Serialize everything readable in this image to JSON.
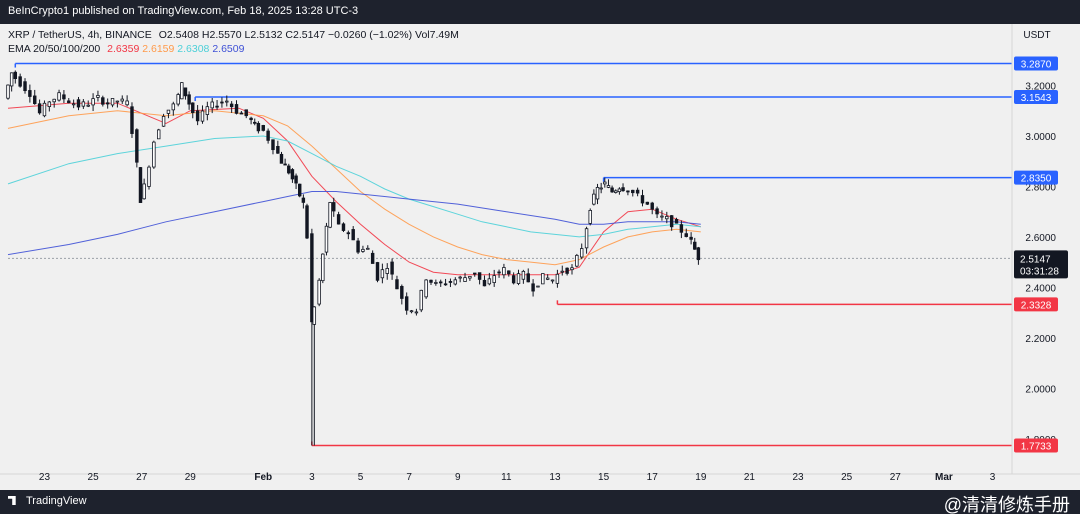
{
  "header": {
    "publisher_text": "BeInCrypto1 published on TradingView.com, Feb 18, 2025 13:28 UTC-3"
  },
  "symbol_line": {
    "symbol": "XRP / TetherUS, 4h, BINANCE",
    "open": "O2.5408",
    "high": "H2.5570",
    "low": "L2.5132",
    "close": "C2.5147",
    "change": "−0.0260 (−1.02%)",
    "volume": "Vol7.49M"
  },
  "ema_line": {
    "label": "EMA 20/50/100/200",
    "values": [
      "2.6359",
      "2.6159",
      "2.6308",
      "2.6509"
    ],
    "colors": [
      "#f23645",
      "#ff9a4a",
      "#4dd0d8",
      "#3f51d6"
    ]
  },
  "currency_label": "USDT",
  "footer": {
    "brand": "TradingView",
    "watermark": "@清清修炼手册"
  },
  "chart_data": {
    "type": "candlestick",
    "pair": "XRP / TetherUS",
    "interval": "4h",
    "exchange": "BINANCE",
    "y_axis": {
      "ticks": [
        "3.2000",
        "3.0000",
        "2.8000",
        "2.6000",
        "2.4000",
        "2.2000",
        "2.0000",
        "1.8000"
      ],
      "tick_values": [
        3.2,
        3.0,
        2.8,
        2.6,
        2.4,
        2.2,
        2.0,
        1.8
      ],
      "range": [
        1.7,
        3.42
      ]
    },
    "x_axis": {
      "ticks": [
        "23",
        "25",
        "27",
        "29",
        "Feb",
        "3",
        "5",
        "7",
        "9",
        "11",
        "13",
        "15",
        "17",
        "19",
        "21",
        "23",
        "25",
        "27",
        "Mar",
        "3"
      ],
      "tick_days": [
        -9,
        -7,
        -5,
        -3,
        0,
        2,
        4,
        6,
        8,
        10,
        12,
        14,
        16,
        18,
        20,
        22,
        24,
        26,
        28,
        30
      ],
      "range_days": [
        -10.5,
        30.8
      ]
    },
    "levels": [
      {
        "value": 3.287,
        "label": "3.2870",
        "color": "#2962ff",
        "from_day": -10.2
      },
      {
        "value": 3.1543,
        "label": "3.1543",
        "color": "#2962ff",
        "from_day": -2.8
      },
      {
        "value": 2.835,
        "label": "2.8350",
        "color": "#2962ff",
        "from_day": 14.0
      },
      {
        "value": 2.3328,
        "label": "2.3328",
        "color": "#f23645",
        "from_day": 12.1
      },
      {
        "value": 1.7733,
        "label": "1.7733",
        "color": "#f23645",
        "from_day": 2.0
      }
    ],
    "last_price": {
      "value": 2.5147,
      "label": "2.5147",
      "countdown": "03:31:28"
    },
    "candles_close_path": [
      [
        -10.5,
        3.15
      ],
      [
        -10.2,
        3.25
      ],
      [
        -9.8,
        3.21
      ],
      [
        -9.4,
        3.17
      ],
      [
        -9.0,
        3.09
      ],
      [
        -8.6,
        3.14
      ],
      [
        -8.2,
        3.16
      ],
      [
        -7.8,
        3.14
      ],
      [
        -7.4,
        3.12
      ],
      [
        -7.0,
        3.13
      ],
      [
        -6.6,
        3.15
      ],
      [
        -6.2,
        3.13
      ],
      [
        -5.8,
        3.14
      ],
      [
        -5.4,
        3.13
      ],
      [
        -5.2,
        3.02
      ],
      [
        -4.9,
        2.75
      ],
      [
        -4.7,
        2.8
      ],
      [
        -4.3,
        2.98
      ],
      [
        -3.9,
        3.09
      ],
      [
        -3.5,
        3.12
      ],
      [
        -3.2,
        3.2
      ],
      [
        -2.9,
        3.13
      ],
      [
        -2.5,
        3.06
      ],
      [
        -2.1,
        3.11
      ],
      [
        -1.7,
        3.13
      ],
      [
        -1.3,
        3.14
      ],
      [
        -0.9,
        3.1
      ],
      [
        -0.5,
        3.08
      ],
      [
        -0.2,
        3.04
      ],
      [
        0.2,
        3.02
      ],
      [
        0.6,
        2.96
      ],
      [
        0.9,
        2.9
      ],
      [
        1.2,
        2.86
      ],
      [
        1.5,
        2.8
      ],
      [
        1.8,
        2.73
      ],
      [
        2.0,
        2.6
      ],
      [
        2.1,
        2.26
      ],
      [
        2.3,
        2.32
      ],
      [
        2.6,
        2.53
      ],
      [
        2.9,
        2.74
      ],
      [
        3.3,
        2.64
      ],
      [
        3.7,
        2.62
      ],
      [
        4.1,
        2.55
      ],
      [
        4.5,
        2.55
      ],
      [
        4.9,
        2.44
      ],
      [
        5.3,
        2.49
      ],
      [
        5.7,
        2.4
      ],
      [
        6.1,
        2.32
      ],
      [
        6.5,
        2.31
      ],
      [
        6.9,
        2.44
      ],
      [
        7.3,
        2.41
      ],
      [
        7.7,
        2.42
      ],
      [
        8.1,
        2.43
      ],
      [
        8.5,
        2.44
      ],
      [
        8.9,
        2.46
      ],
      [
        9.3,
        2.4
      ],
      [
        9.7,
        2.45
      ],
      [
        10.1,
        2.47
      ],
      [
        10.5,
        2.43
      ],
      [
        10.9,
        2.45
      ],
      [
        11.3,
        2.4
      ],
      [
        11.7,
        2.44
      ],
      [
        12.1,
        2.43
      ],
      [
        12.5,
        2.47
      ],
      [
        12.9,
        2.47
      ],
      [
        13.3,
        2.56
      ],
      [
        13.6,
        2.72
      ],
      [
        13.9,
        2.79
      ],
      [
        14.2,
        2.81
      ],
      [
        14.5,
        2.78
      ],
      [
        14.8,
        2.8
      ],
      [
        15.2,
        2.79
      ],
      [
        15.6,
        2.76
      ],
      [
        16.0,
        2.73
      ],
      [
        16.4,
        2.68
      ],
      [
        16.8,
        2.67
      ],
      [
        17.2,
        2.64
      ],
      [
        17.6,
        2.61
      ],
      [
        17.9,
        2.55
      ],
      [
        18.1,
        2.52
      ]
    ],
    "series": [
      {
        "name": "EMA 20",
        "color": "#f23645",
        "points": [
          [
            -10.5,
            3.11
          ],
          [
            -8,
            3.13
          ],
          [
            -6,
            3.13
          ],
          [
            -5,
            3.09
          ],
          [
            -4,
            3.05
          ],
          [
            -3,
            3.1
          ],
          [
            -1,
            3.11
          ],
          [
            0,
            3.07
          ],
          [
            1,
            2.98
          ],
          [
            2,
            2.84
          ],
          [
            3,
            2.74
          ],
          [
            4,
            2.65
          ],
          [
            5,
            2.57
          ],
          [
            6,
            2.5
          ],
          [
            7,
            2.46
          ],
          [
            8,
            2.45
          ],
          [
            9,
            2.45
          ],
          [
            10,
            2.45
          ],
          [
            11,
            2.45
          ],
          [
            12,
            2.45
          ],
          [
            13,
            2.48
          ],
          [
            14,
            2.62
          ],
          [
            15,
            2.7
          ],
          [
            16,
            2.71
          ],
          [
            17,
            2.67
          ],
          [
            18,
            2.64
          ]
        ]
      },
      {
        "name": "EMA 50",
        "color": "#ff9a4a",
        "points": [
          [
            -10.5,
            3.03
          ],
          [
            -8,
            3.08
          ],
          [
            -6,
            3.1
          ],
          [
            -4,
            3.08
          ],
          [
            -2,
            3.1
          ],
          [
            0,
            3.08
          ],
          [
            1,
            3.04
          ],
          [
            2,
            2.96
          ],
          [
            3,
            2.87
          ],
          [
            4,
            2.78
          ],
          [
            5,
            2.71
          ],
          [
            6,
            2.65
          ],
          [
            7,
            2.6
          ],
          [
            8,
            2.56
          ],
          [
            9,
            2.53
          ],
          [
            10,
            2.51
          ],
          [
            11,
            2.5
          ],
          [
            12,
            2.49
          ],
          [
            13,
            2.51
          ],
          [
            14,
            2.56
          ],
          [
            15,
            2.6
          ],
          [
            16,
            2.62
          ],
          [
            17,
            2.63
          ],
          [
            18,
            2.62
          ]
        ]
      },
      {
        "name": "EMA 100",
        "color": "#4dd0d8",
        "points": [
          [
            -10.5,
            2.81
          ],
          [
            -8,
            2.89
          ],
          [
            -6,
            2.93
          ],
          [
            -4,
            2.96
          ],
          [
            -2,
            2.99
          ],
          [
            0,
            3.0
          ],
          [
            1,
            2.98
          ],
          [
            2,
            2.93
          ],
          [
            3,
            2.88
          ],
          [
            4,
            2.84
          ],
          [
            5,
            2.79
          ],
          [
            6,
            2.75
          ],
          [
            7,
            2.72
          ],
          [
            8,
            2.69
          ],
          [
            9,
            2.66
          ],
          [
            10,
            2.64
          ],
          [
            11,
            2.62
          ],
          [
            12,
            2.61
          ],
          [
            13,
            2.6
          ],
          [
            14,
            2.61
          ],
          [
            15,
            2.63
          ],
          [
            16,
            2.64
          ],
          [
            17,
            2.65
          ],
          [
            18,
            2.64
          ]
        ]
      },
      {
        "name": "EMA 200",
        "color": "#3f51d6",
        "points": [
          [
            -10.5,
            2.53
          ],
          [
            -8,
            2.57
          ],
          [
            -6,
            2.61
          ],
          [
            -4,
            2.66
          ],
          [
            -2,
            2.7
          ],
          [
            0,
            2.74
          ],
          [
            1,
            2.76
          ],
          [
            2,
            2.78
          ],
          [
            3,
            2.78
          ],
          [
            4,
            2.77
          ],
          [
            6,
            2.75
          ],
          [
            8,
            2.73
          ],
          [
            10,
            2.7
          ],
          [
            12,
            2.67
          ],
          [
            13,
            2.65
          ],
          [
            14,
            2.65
          ],
          [
            15,
            2.66
          ],
          [
            16,
            2.66
          ],
          [
            17,
            2.66
          ],
          [
            18,
            2.65
          ]
        ]
      }
    ]
  }
}
